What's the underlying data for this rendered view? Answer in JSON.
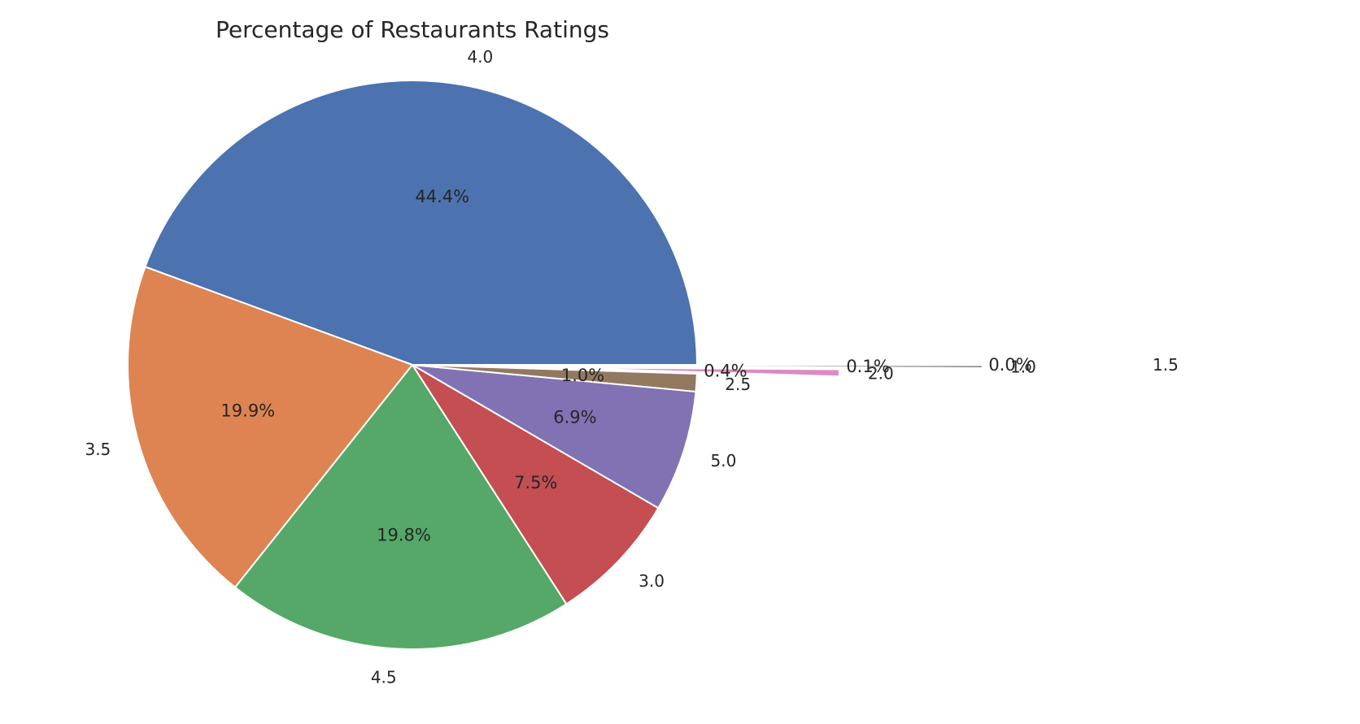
{
  "chart_data": {
    "type": "pie",
    "title": "Percentage of Restaurants Ratings",
    "categories": [
      "4.0",
      "3.5",
      "4.5",
      "3.0",
      "5.0",
      "2.5",
      "2.0",
      "1.0",
      "1.5"
    ],
    "values": [
      44.4,
      19.9,
      19.8,
      7.5,
      6.9,
      1.0,
      0.4,
      0.1,
      0.0
    ],
    "percent_labels": [
      "44.4%",
      "19.9%",
      "19.8%",
      "7.5%",
      "6.9%",
      "1.0%",
      "0.4%",
      "0.1%",
      "0.0%"
    ],
    "explode": [
      0,
      0,
      0,
      0,
      0,
      0,
      0.5,
      1.0,
      1.5
    ],
    "colors": [
      "#4c72b0",
      "#dd8452",
      "#55a868",
      "#c44e52",
      "#8172b3",
      "#937860",
      "#da8bc3",
      "#8c8c8c",
      "#ccb974"
    ],
    "start_angle_deg": 0,
    "direction": "counterclockwise",
    "legend": "none",
    "grid": false
  }
}
